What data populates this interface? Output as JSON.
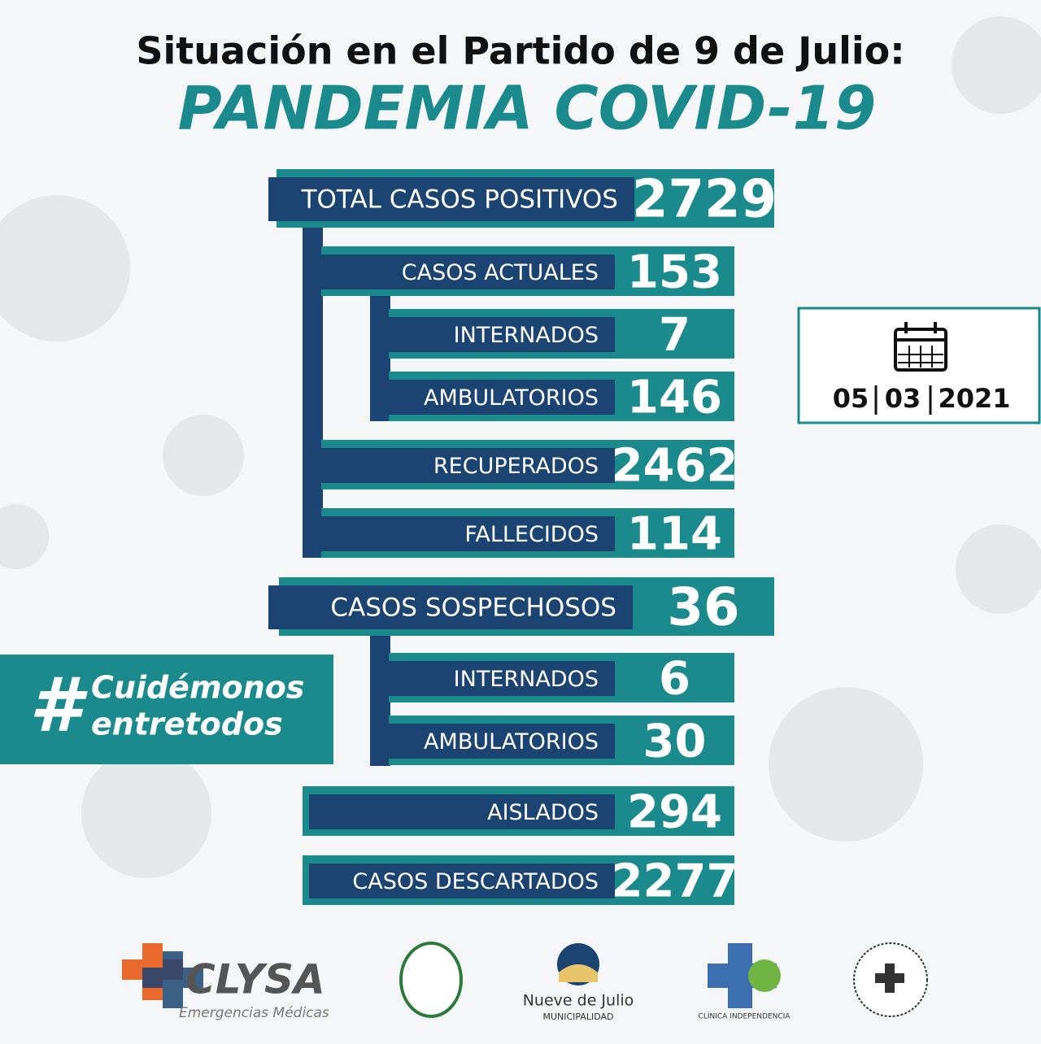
{
  "header": {
    "title": "Situación en el Partido de 9 de Julio:",
    "subtitle": "PANDEMIA COVID-19"
  },
  "rows": [
    {
      "label": "TOTAL CASOS POSITIVOS",
      "value": 2729
    },
    {
      "label": "CASOS ACTUALES",
      "value": 153
    },
    {
      "label": "INTERNADOS",
      "value": 7
    },
    {
      "label": "AMBULATORIOS",
      "value": 146
    },
    {
      "label": "RECUPERADOS",
      "value": 2462
    },
    {
      "label": "FALLECIDOS",
      "value": 114
    },
    {
      "label": "CASOS SOSPECHOSOS",
      "value": 36
    },
    {
      "label": "INTERNADOS",
      "value": 6
    },
    {
      "label": "AMBULATORIOS",
      "value": 30
    },
    {
      "label": "AISLADOS",
      "value": 294
    },
    {
      "label": "CASOS DESCARTADOS",
      "value": 2277
    }
  ],
  "date": {
    "day": "05",
    "month": "03",
    "year": "2021"
  },
  "hashtag": {
    "symbol": "#",
    "line1": "Cuidémonos",
    "line2": "entretodos"
  },
  "sponsors": {
    "clysa": "CLYSA",
    "clysa_tagline": "Emergencias Médicas",
    "municipality": "Nueve de Julio",
    "municipality_sub": "MUNICIPALIDAD",
    "clinic": "CLÍNICA INDEPENDENCIA"
  }
}
